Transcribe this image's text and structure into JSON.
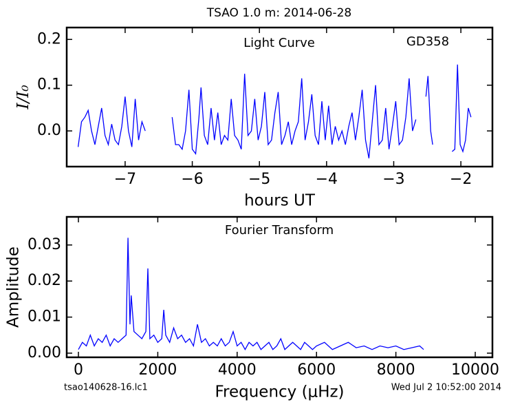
{
  "title": "TSAO 1.0 m:  2014-06-28",
  "footer": {
    "left": "tsao140628-16.lc1",
    "right": "Wed Jul  2 10:52:00 2014"
  },
  "chart_data": [
    {
      "type": "line",
      "title": "Light Curve",
      "annotation": "GD358",
      "x_label": "hours UT",
      "y_label": "I/I₀",
      "color": "#0000ff",
      "x": [
        -7.7,
        -7.65,
        -7.6,
        -7.55,
        -7.5,
        -7.45,
        -7.4,
        -7.35,
        -7.3,
        -7.25,
        -7.2,
        -7.15,
        -7.1,
        -7.05,
        -7.0,
        -6.95,
        -6.9,
        -6.85,
        -6.8,
        -6.75,
        -6.7,
        -6.5,
        -6.3,
        -6.25,
        -6.2,
        -6.15,
        -6.1,
        -6.05,
        -6.0,
        -5.95,
        -5.9,
        -5.87,
        -5.82,
        -5.77,
        -5.72,
        -5.67,
        -5.62,
        -5.57,
        -5.52,
        -5.47,
        -5.42,
        -5.37,
        -5.32,
        -5.27,
        -5.22,
        -5.17,
        -5.12,
        -5.07,
        -5.02,
        -4.97,
        -4.92,
        -4.87,
        -4.82,
        -4.77,
        -4.72,
        -4.67,
        -4.62,
        -4.57,
        -4.52,
        -4.47,
        -4.42,
        -4.37,
        -4.32,
        -4.27,
        -4.22,
        -4.17,
        -4.12,
        -4.07,
        -4.02,
        -3.97,
        -3.92,
        -3.87,
        -3.82,
        -3.77,
        -3.72,
        -3.67,
        -3.62,
        -3.57,
        -3.52,
        -3.47,
        -3.42,
        -3.37,
        -3.32,
        -3.27,
        -3.22,
        -3.17,
        -3.12,
        -3.07,
        -3.02,
        -2.97,
        -2.92,
        -2.87,
        -2.82,
        -2.77,
        -2.72,
        -2.67,
        -2.6,
        -2.52,
        -2.49,
        -2.45,
        -2.42,
        -2.3,
        -2.13,
        -2.09,
        -2.05,
        -2.01,
        -1.97,
        -1.93,
        -1.89,
        -1.85
      ],
      "values": [
        -0.035,
        0.02,
        0.03,
        0.045,
        0.0,
        -0.03,
        0.01,
        0.05,
        -0.01,
        -0.03,
        0.015,
        -0.02,
        -0.03,
        0.01,
        0.075,
        0.0,
        -0.035,
        0.07,
        -0.02,
        0.02,
        0.0,
        null,
        0.03,
        -0.03,
        -0.03,
        -0.04,
        0.0,
        0.09,
        -0.04,
        -0.05,
        0.03,
        0.095,
        -0.01,
        -0.03,
        0.05,
        -0.02,
        0.04,
        -0.03,
        -0.01,
        -0.02,
        0.07,
        -0.01,
        -0.02,
        -0.04,
        0.125,
        -0.01,
        0.0,
        0.07,
        -0.02,
        0.01,
        0.085,
        -0.03,
        -0.02,
        0.04,
        0.085,
        -0.03,
        -0.01,
        0.02,
        -0.03,
        0.0,
        0.02,
        0.115,
        -0.02,
        0.02,
        0.08,
        -0.01,
        -0.03,
        0.065,
        -0.02,
        0.055,
        -0.03,
        0.01,
        -0.02,
        0.0,
        -0.03,
        0.01,
        0.04,
        -0.02,
        0.03,
        0.09,
        -0.02,
        -0.06,
        0.02,
        0.1,
        -0.03,
        -0.02,
        0.05,
        -0.04,
        0.01,
        0.065,
        -0.03,
        -0.02,
        0.03,
        0.115,
        0.0,
        0.025,
        null,
        0.075,
        0.12,
        0.0,
        -0.03,
        null,
        -0.045,
        -0.04,
        0.145,
        -0.03,
        -0.045,
        -0.02,
        0.05,
        0.03
      ],
      "xlim": [
        -7.87,
        -1.53
      ],
      "ylim": [
        -0.078,
        0.226
      ],
      "xticks": [
        {
          "value": -7,
          "label": "−7"
        },
        {
          "value": -6,
          "label": "−6"
        },
        {
          "value": -5,
          "label": "−5"
        },
        {
          "value": -4,
          "label": "−4"
        },
        {
          "value": -3,
          "label": "−3"
        },
        {
          "value": -2,
          "label": "−2"
        }
      ],
      "yticks": [
        {
          "value": 0,
          "label": "0.0"
        },
        0.1,
        0.2
      ]
    },
    {
      "type": "line",
      "title": "Fourier Transform",
      "x_label": "Frequency (μHz)",
      "y_label": "Amplitude",
      "color": "#0000ff",
      "x": [
        0,
        100,
        200,
        300,
        400,
        500,
        600,
        700,
        800,
        900,
        1000,
        1100,
        1200,
        1250,
        1300,
        1330,
        1400,
        1500,
        1600,
        1700,
        1750,
        1800,
        1900,
        2000,
        2100,
        2150,
        2200,
        2300,
        2400,
        2500,
        2600,
        2700,
        2800,
        2900,
        3000,
        3100,
        3200,
        3300,
        3400,
        3500,
        3600,
        3700,
        3800,
        3900,
        4000,
        4100,
        4200,
        4300,
        4400,
        4500,
        4600,
        4700,
        4800,
        4900,
        5000,
        5100,
        5200,
        5300,
        5400,
        5500,
        5600,
        5700,
        5800,
        5900,
        6000,
        6200,
        6400,
        6600,
        6800,
        7000,
        7200,
        7400,
        7600,
        7800,
        8000,
        8200,
        8400,
        8600,
        8700
      ],
      "values": [
        0.001,
        0.003,
        0.002,
        0.005,
        0.002,
        0.004,
        0.003,
        0.005,
        0.002,
        0.004,
        0.003,
        0.004,
        0.005,
        0.032,
        0.008,
        0.016,
        0.006,
        0.005,
        0.004,
        0.006,
        0.0235,
        0.004,
        0.005,
        0.003,
        0.004,
        0.012,
        0.005,
        0.003,
        0.007,
        0.004,
        0.005,
        0.003,
        0.004,
        0.002,
        0.008,
        0.003,
        0.004,
        0.002,
        0.003,
        0.002,
        0.004,
        0.002,
        0.003,
        0.006,
        0.002,
        0.003,
        0.001,
        0.003,
        0.002,
        0.003,
        0.001,
        0.002,
        0.003,
        0.001,
        0.002,
        0.004,
        0.001,
        0.002,
        0.003,
        0.002,
        0.001,
        0.003,
        0.002,
        0.001,
        0.002,
        0.003,
        0.001,
        0.002,
        0.003,
        0.0015,
        0.002,
        0.001,
        0.002,
        0.0015,
        0.002,
        0.001,
        0.0015,
        0.002,
        0.001
      ],
      "xlim": [
        -295,
        10433
      ],
      "ylim": [
        -0.00115,
        0.0378
      ],
      "xticks": [
        0,
        2000,
        4000,
        6000,
        8000,
        10000
      ],
      "yticks": [
        {
          "value": 0,
          "label": "0.00"
        },
        0.01,
        0.02,
        0.03
      ]
    }
  ]
}
